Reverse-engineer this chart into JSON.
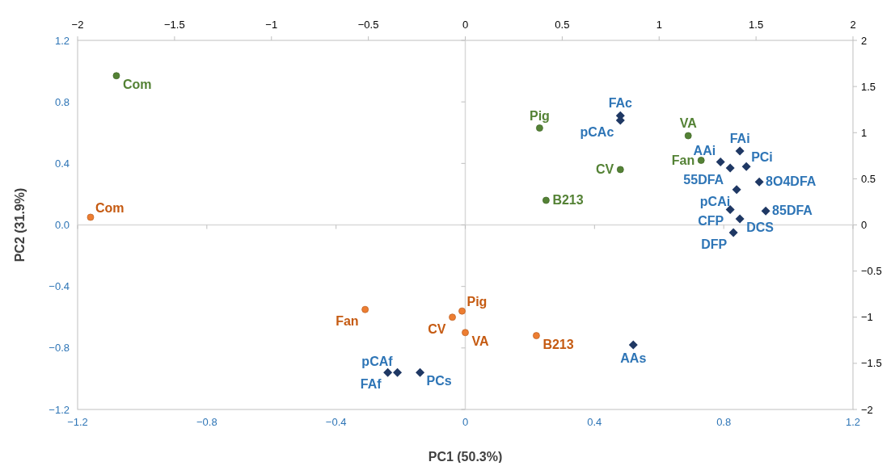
{
  "chart_data": {
    "type": "scatter",
    "xlabel": "PC1 (50.3%)",
    "ylabel": "PC2 (31.9%)",
    "xlim": [
      -1.2,
      1.2
    ],
    "xticks": [
      {
        "value": -1.2,
        "label": "−1.2"
      },
      {
        "value": -0.8,
        "label": "−0.8"
      },
      {
        "value": -0.4,
        "label": "−0.4"
      },
      0,
      0.4,
      0.8,
      1.2
    ],
    "ylim": [
      -1.2,
      1.2
    ],
    "yticks": [
      {
        "value": -1.2,
        "label": "−1.2"
      },
      {
        "value": -0.8,
        "label": "−0.8"
      },
      {
        "value": -0.4,
        "label": "−0.4"
      },
      {
        "value": 0,
        "label": "0.0"
      },
      0.4,
      0.8,
      1.2
    ],
    "x2lim": [
      -2,
      2
    ],
    "x2ticks": [
      {
        "value": -2,
        "label": "−2"
      },
      {
        "value": -1.5,
        "label": "−1.5"
      },
      {
        "value": -1,
        "label": "−1"
      },
      {
        "value": -0.5,
        "label": "−0.5"
      },
      0,
      0.5,
      1,
      1.5,
      2
    ],
    "y2lim": [
      -2,
      2
    ],
    "y2ticks": [
      {
        "value": -2,
        "label": "−2"
      },
      {
        "value": -1.5,
        "label": "−1.5"
      },
      {
        "value": -1,
        "label": "−1"
      },
      {
        "value": -0.5,
        "label": "−0.5"
      },
      0,
      0.5,
      1,
      1.5,
      2
    ],
    "series": [
      {
        "color": "#548235",
        "marker": "circle",
        "x": [
          -1.08,
          0.23,
          0.48,
          0.69,
          0.73,
          0.25
        ],
        "values": [
          0.97,
          0.63,
          0.36,
          0.58,
          0.42,
          0.16
        ]
      },
      {
        "color": "#ed7d31",
        "marker": "circle",
        "x": [
          -1.16,
          -0.31,
          -0.01,
          -0.04,
          0.0,
          0.22
        ],
        "values": [
          0.05,
          -0.55,
          -0.56,
          -0.6,
          -0.7,
          -0.72
        ]
      },
      {
        "color": "#1f3864",
        "marker": "diamond",
        "x": [
          0.48,
          0.48,
          0.85,
          0.79,
          0.82,
          0.87,
          0.91,
          0.84,
          0.82,
          0.93,
          0.85,
          0.83,
          0.52,
          -0.24,
          -0.21,
          -0.14
        ],
        "values": [
          0.71,
          0.68,
          0.48,
          0.41,
          0.37,
          0.38,
          0.28,
          0.23,
          0.1,
          0.09,
          0.04,
          -0.05,
          -0.78,
          -0.96,
          -0.96,
          -0.96
        ]
      }
    ],
    "annotations": [
      {
        "text": "Com",
        "x": -1.08,
        "y": 0.97
      },
      {
        "text": "Pig",
        "x": 0.23,
        "y": 0.63
      },
      {
        "text": "CV",
        "x": 0.48,
        "y": 0.36
      },
      {
        "text": "VA",
        "x": 0.69,
        "y": 0.58
      },
      {
        "text": "Fan",
        "x": 0.73,
        "y": 0.42
      },
      {
        "text": "B213",
        "x": 0.25,
        "y": 0.16
      },
      {
        "text": "Com",
        "x": -1.16,
        "y": 0.05
      },
      {
        "text": "Fan",
        "x": -0.31,
        "y": -0.55
      },
      {
        "text": "Pig",
        "x": -0.01,
        "y": -0.56
      },
      {
        "text": "CV",
        "x": -0.04,
        "y": -0.6
      },
      {
        "text": "VA",
        "x": 0.0,
        "y": -0.7
      },
      {
        "text": "B213",
        "x": 0.22,
        "y": -0.72
      },
      {
        "text": "FAc",
        "x": 0.48,
        "y": 0.71
      },
      {
        "text": "pCAc",
        "x": 0.48,
        "y": 0.68
      },
      {
        "text": "FAi",
        "x": 0.85,
        "y": 0.48
      },
      {
        "text": "AAi",
        "x": 0.79,
        "y": 0.41
      },
      {
        "text": "55DFA",
        "x": 0.82,
        "y": 0.37
      },
      {
        "text": "PCi",
        "x": 0.87,
        "y": 0.38
      },
      {
        "text": "8O4DFA",
        "x": 0.91,
        "y": 0.28
      },
      {
        "text": "pCAi",
        "x": 0.84,
        "y": 0.23
      },
      {
        "text": "CFP",
        "x": 0.82,
        "y": 0.1
      },
      {
        "text": "85DFA",
        "x": 0.93,
        "y": 0.09
      },
      {
        "text": "DCS",
        "x": 0.85,
        "y": 0.04
      },
      {
        "text": "DFP",
        "x": 0.83,
        "y": -0.05
      },
      {
        "text": "AAs",
        "x": 0.52,
        "y": -0.78
      },
      {
        "text": "FAf",
        "x": -0.24,
        "y": -0.96
      },
      {
        "text": "pCAf",
        "x": -0.21,
        "y": -0.96
      },
      {
        "text": "PCs",
        "x": -0.14,
        "y": -0.96
      }
    ]
  }
}
